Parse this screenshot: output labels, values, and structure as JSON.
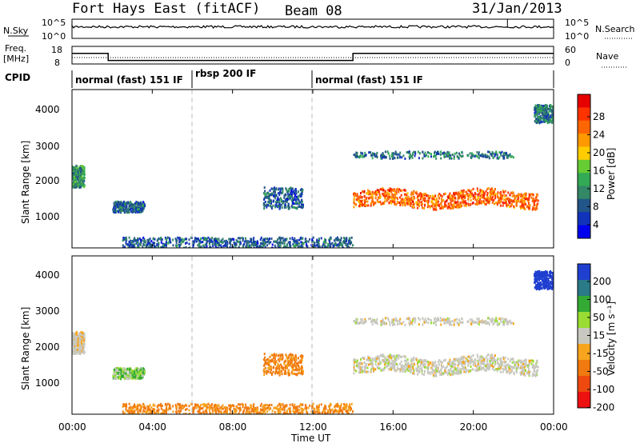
{
  "header": {
    "station": "Fort Hays East (fitACF)",
    "beam": "Beam 08",
    "date": "31/Jan/2013"
  },
  "panels": {
    "nsky": {
      "label": "N.Sky",
      "ticks": [
        "10^5",
        "10^0"
      ]
    },
    "nsearch": {
      "label": "N.Search",
      "ticks": [
        "10^5",
        "10^0"
      ]
    },
    "freq": {
      "label_line1": "Freq.",
      "label_line2": "[MHz]",
      "ticks": [
        "18",
        "8"
      ]
    },
    "nave": {
      "label": "Nave",
      "ticks": [
        "60",
        "0"
      ]
    },
    "cpid": {
      "label": "CPID",
      "segments": [
        "normal (fast) 151 IF",
        "rbsp 200 IF",
        "normal (fast) 151 IF"
      ]
    },
    "power": {
      "ylabel": "Slant Range [km]",
      "yticks": [
        "1000",
        "2000",
        "3000",
        "4000"
      ],
      "cbar_label": "Power [dB]"
    },
    "velocity": {
      "ylabel": "Slant Range [km]",
      "yticks": [
        "1000",
        "2000",
        "3000",
        "4000"
      ],
      "cbar_label": "Velocity [m s⁻¹]"
    },
    "xaxis": {
      "label": "Time UT",
      "ticks": [
        "00:00",
        "04:00",
        "08:00",
        "12:00",
        "16:00",
        "20:00",
        "00:00"
      ]
    }
  },
  "colorbars": {
    "power": {
      "ticks": [
        "28",
        "24",
        "20",
        "16",
        "12",
        "8",
        "4"
      ],
      "colors": [
        "#e60000",
        "#ff3300",
        "#ff6600",
        "#ff9900",
        "#ffcc00",
        "#66cc33",
        "#33aa55",
        "#338866",
        "#225588",
        "#1133bb",
        "#0000ee"
      ]
    },
    "velocity": {
      "ticks": [
        "200",
        "100",
        "50",
        "15",
        "-15",
        "-50",
        "-100",
        "-200"
      ],
      "colors": [
        "#1f3fd0",
        "#2a7a88",
        "#33aa33",
        "#99dd33",
        "#c8c8c0",
        "#f7a51e",
        "#f07a10",
        "#ee4a10",
        "#ee1111"
      ]
    }
  },
  "chart_data": {
    "type": "heatmap",
    "x_range_hours": [
      0,
      24
    ],
    "y_range_km": [
      180,
      4600
    ],
    "cpid_change_hours": [
      6,
      12
    ],
    "freq_mhz": [
      {
        "from": 0,
        "to": 1.8,
        "value": 14
      },
      {
        "from": 1.8,
        "to": 14.0,
        "value": 10
      },
      {
        "from": 14.0,
        "to": 24,
        "value": 14
      }
    ],
    "echo_regions": [
      {
        "name": "early-high",
        "t": [
          0,
          0.6
        ],
        "range_km": [
          1900,
          2500
        ],
        "power_db": 10,
        "velocity": -5
      },
      {
        "name": "early-diag",
        "t": [
          2,
          3.6
        ],
        "range_km": [
          1200,
          1500
        ],
        "power_db": 6,
        "velocity": 25
      },
      {
        "name": "ground",
        "t": [
          2.5,
          14
        ],
        "range_km": [
          200,
          500
        ],
        "power_db": 6,
        "velocity": -35
      },
      {
        "name": "evening-diag",
        "t": [
          9.5,
          11.5
        ],
        "range_km": [
          1300,
          1900
        ],
        "power_db": 6,
        "velocity": -40
      },
      {
        "name": "main-band",
        "t": [
          14,
          23.2
        ],
        "range_km": [
          1350,
          1800
        ],
        "power_db": 24,
        "velocity": 0
      },
      {
        "name": "upper-band",
        "t": [
          14,
          22
        ],
        "range_km": [
          2700,
          2900
        ],
        "power_db": 8,
        "velocity": 0
      },
      {
        "name": "high-late",
        "t": [
          23,
          24
        ],
        "range_km": [
          3700,
          4200
        ],
        "power_db": 8,
        "velocity": 200
      }
    ]
  }
}
